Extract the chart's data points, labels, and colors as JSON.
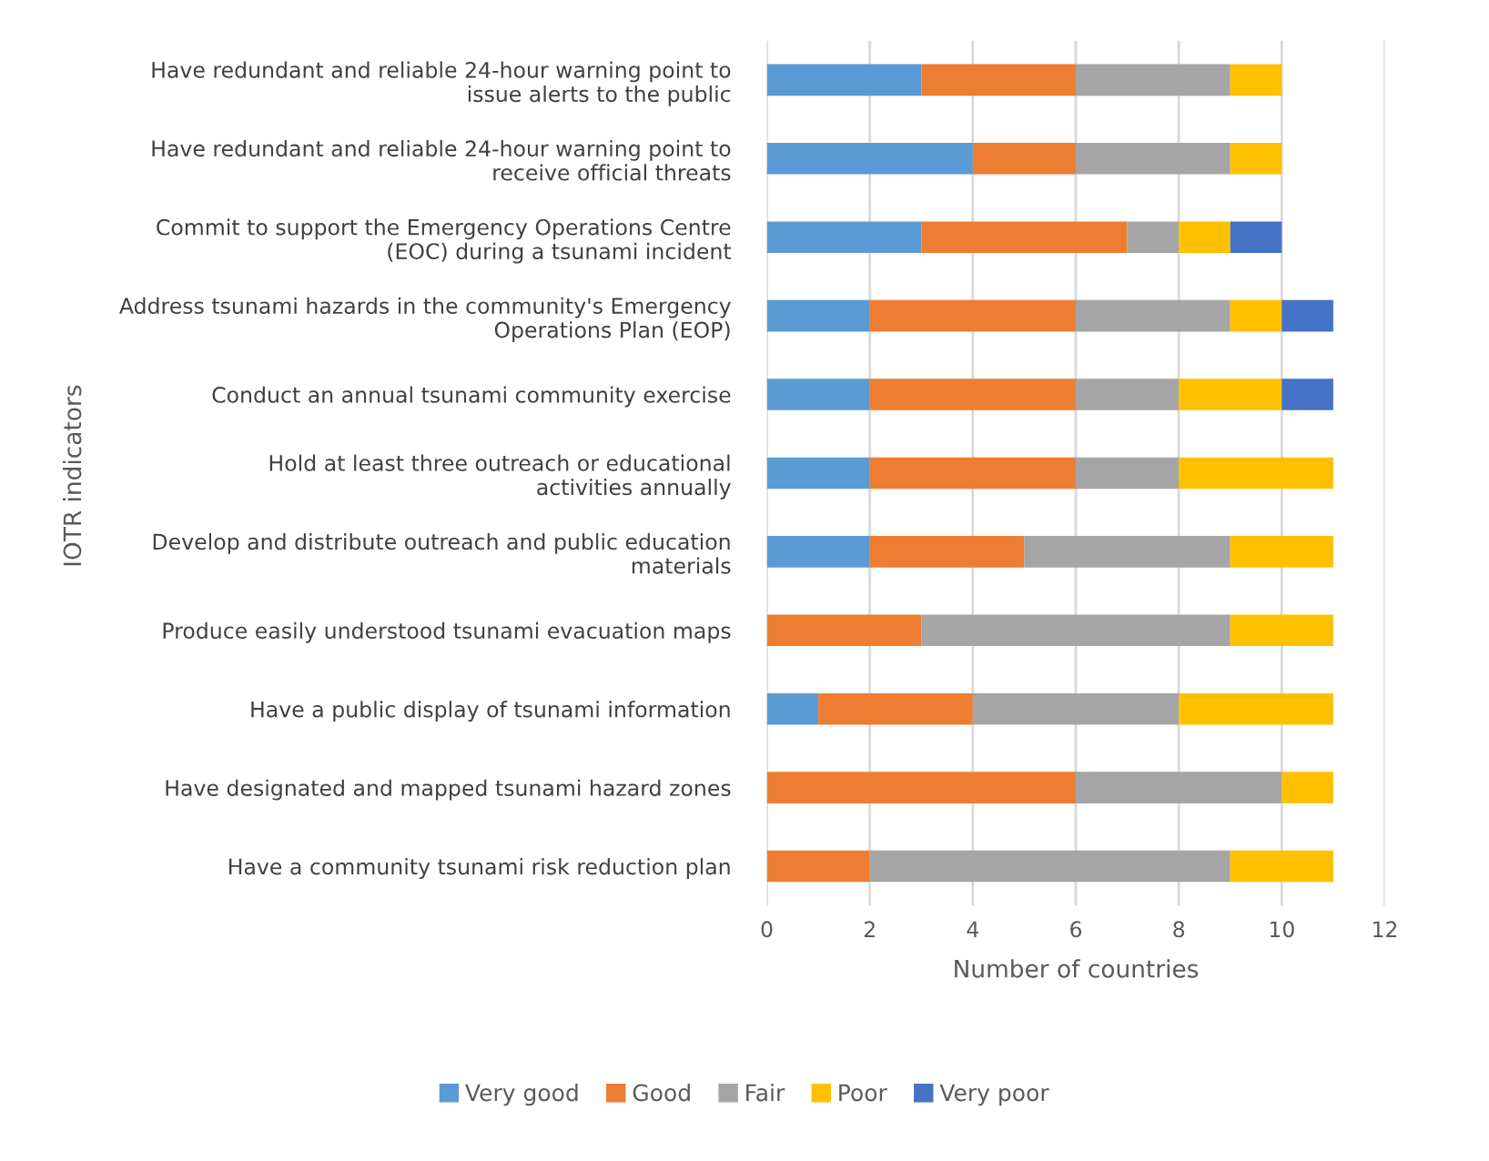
{
  "chart_data": {
    "type": "bar",
    "orientation": "horizontal",
    "stacked": true,
    "categories": [
      "Have redundant and reliable 24-hour warning point to issue alerts to the public",
      "Have redundant and reliable 24-hour warning point to receive official threats",
      "Commit to support the Emergency Operations Centre (EOC) during a tsunami incident",
      "Address tsunami hazards in the community's Emergency Operations Plan (EOP)",
      "Conduct an annual tsunami community exercise",
      "Hold at least three outreach or educational activities annually",
      "Develop and distribute outreach and public education materials",
      "Produce easily understood tsunami evacuation maps",
      "Have a public display of tsunami information",
      "Have designated and mapped tsunami hazard zones",
      "Have a community tsunami risk reduction plan"
    ],
    "series": [
      {
        "name": "Very good",
        "color": "#5b9bd5",
        "values": [
          3,
          4,
          3,
          2,
          2,
          2,
          2,
          null,
          1,
          null,
          null
        ]
      },
      {
        "name": "Good",
        "color": "#ed7d31",
        "values": [
          3,
          2,
          4,
          4,
          4,
          4,
          3,
          3,
          3,
          6,
          2
        ]
      },
      {
        "name": "Fair",
        "color": "#a5a5a5",
        "values": [
          3,
          3,
          1,
          3,
          2,
          2,
          4,
          6,
          4,
          4,
          7
        ]
      },
      {
        "name": "Poor",
        "color": "#ffc000",
        "values": [
          1,
          1,
          1,
          1,
          2,
          3,
          2,
          2,
          3,
          1,
          2
        ]
      },
      {
        "name": "Very poor",
        "color": "#4472c4",
        "values": [
          null,
          null,
          1,
          1,
          1,
          null,
          null,
          null,
          null,
          null,
          null
        ]
      }
    ],
    "xlabel": "Number of countries",
    "ylabel": "IOTR indicators",
    "xlim": [
      0,
      12
    ],
    "xticks": [
      0,
      2,
      4,
      6,
      8,
      10,
      12
    ],
    "grid": "x",
    "legend": "bottom"
  }
}
